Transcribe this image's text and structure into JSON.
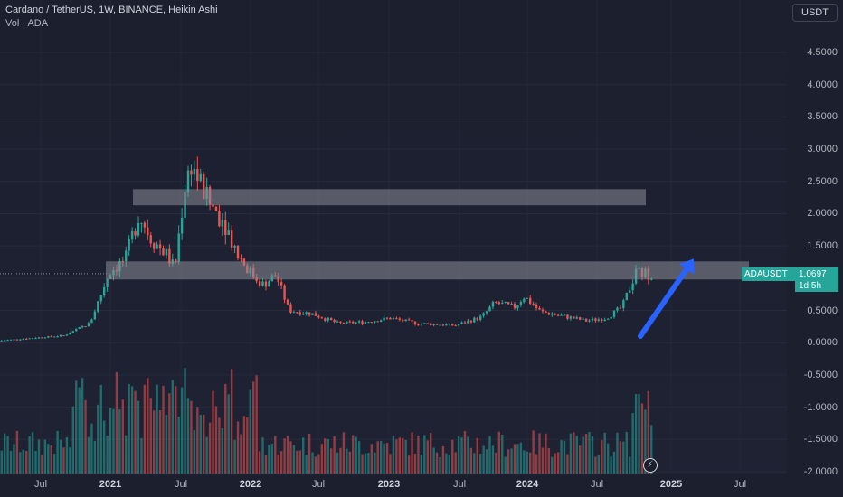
{
  "header": {
    "title": "Cardano / TetherUS, 1W, BINANCE, Heikin Ashi",
    "volume_label": "Vol · ADA"
  },
  "currency_button": "USDT",
  "symbol_label": "ADAUSDT",
  "last_price": "1.0697",
  "countdown": "1d 5h",
  "colors": {
    "up": "#26a69a",
    "down": "#ef5350",
    "zone": "#8a8d96",
    "arrow": "#2962ff"
  },
  "icons": {
    "flash": "lightning-bolt-icon"
  },
  "chart_data": {
    "type": "candlestick",
    "price_axis": [
      "4.5000",
      "4.0000",
      "3.5000",
      "3.0000",
      "2.5000",
      "2.0000",
      "1.5000",
      "1.0000",
      "0.5000",
      "0.0000",
      "-0.5000",
      "-1.0000",
      "-1.5000",
      "-2.0000"
    ],
    "time_axis": [
      "Jul",
      "2021",
      "Jul",
      "2022",
      "Jul",
      "2023",
      "Jul",
      "2024",
      "Jul",
      "2025",
      "Jul"
    ],
    "ylim": [
      -2.0,
      4.75
    ],
    "price_anchors": [
      {
        "t": 0,
        "p": 0.03
      },
      {
        "t": 0.1,
        "p": 0.11
      },
      {
        "t": 0.14,
        "p": 0.3
      },
      {
        "t": 0.17,
        "p": 1.1
      },
      {
        "t": 0.195,
        "p": 1.3
      },
      {
        "t": 0.215,
        "p": 2.0
      },
      {
        "t": 0.235,
        "p": 1.6
      },
      {
        "t": 0.255,
        "p": 1.4
      },
      {
        "t": 0.27,
        "p": 1.15
      },
      {
        "t": 0.285,
        "p": 2.4
      },
      {
        "t": 0.295,
        "p": 2.8
      },
      {
        "t": 0.32,
        "p": 2.2
      },
      {
        "t": 0.345,
        "p": 1.9
      },
      {
        "t": 0.365,
        "p": 1.4
      },
      {
        "t": 0.385,
        "p": 1.1
      },
      {
        "t": 0.405,
        "p": 0.9
      },
      {
        "t": 0.425,
        "p": 1.05
      },
      {
        "t": 0.445,
        "p": 0.5
      },
      {
        "t": 0.48,
        "p": 0.45
      },
      {
        "t": 0.52,
        "p": 0.3
      },
      {
        "t": 0.56,
        "p": 0.32
      },
      {
        "t": 0.6,
        "p": 0.38
      },
      {
        "t": 0.64,
        "p": 0.3
      },
      {
        "t": 0.7,
        "p": 0.27
      },
      {
        "t": 0.74,
        "p": 0.4
      },
      {
        "t": 0.76,
        "p": 0.62
      },
      {
        "t": 0.79,
        "p": 0.55
      },
      {
        "t": 0.805,
        "p": 0.72
      },
      {
        "t": 0.83,
        "p": 0.48
      },
      {
        "t": 0.87,
        "p": 0.4
      },
      {
        "t": 0.9,
        "p": 0.34
      },
      {
        "t": 0.93,
        "p": 0.38
      },
      {
        "t": 0.955,
        "p": 0.55
      },
      {
        "t": 0.975,
        "p": 1.07
      },
      {
        "t": 1.0,
        "p": 1.0697
      }
    ],
    "zones": [
      {
        "from": 2.13,
        "to": 2.38
      },
      {
        "from": 0.98,
        "to": 1.26
      }
    ],
    "projection_arrow": {
      "from_price": 0.1,
      "to_price": 1.3
    }
  }
}
